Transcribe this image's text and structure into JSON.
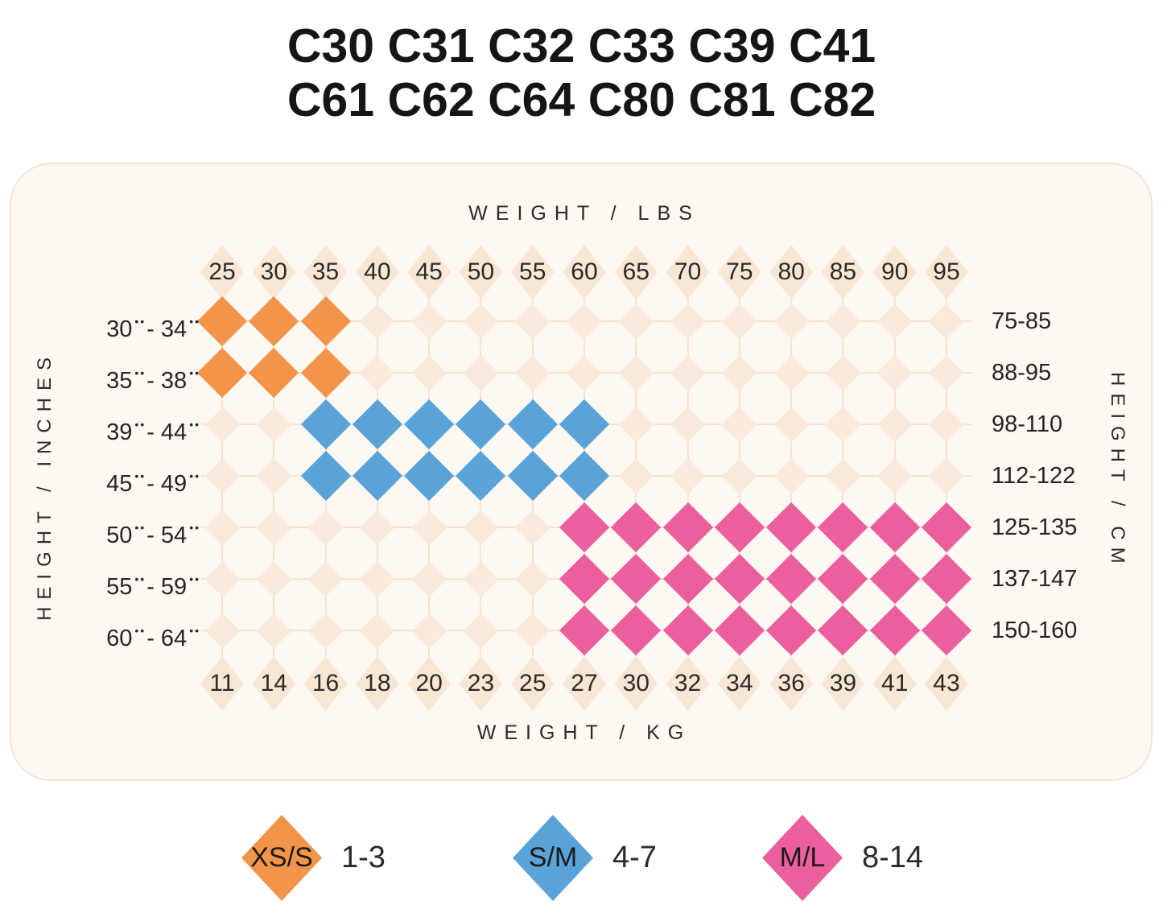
{
  "page_title": {
    "line1": "C30 C31 C32 C33 C39 C41",
    "line2": "C61 C62 C64 C80 C81 C82"
  },
  "chart_data": {
    "type": "heatmap",
    "title": "C30 C31 C32 C33 C39 C41 C61 C62 C64 C80 C81 C82 size chart",
    "axes": {
      "top": {
        "label": "WEIGHT / LBS",
        "ticks": [
          "25",
          "30",
          "35",
          "40",
          "45",
          "50",
          "55",
          "60",
          "65",
          "70",
          "75",
          "80",
          "85",
          "90",
          "95"
        ]
      },
      "bottom": {
        "label": "WEIGHT / KG",
        "ticks": [
          "11",
          "14",
          "16",
          "18",
          "20",
          "23",
          "25",
          "27",
          "30",
          "32",
          "34",
          "36",
          "39",
          "41",
          "43"
        ]
      },
      "left": {
        "label": "HEIGHT / INCHES",
        "unit_mark": "••",
        "separator": "- "
      },
      "right": {
        "label": "HEIGHT / CM"
      }
    },
    "rows": [
      {
        "inches": {
          "low": "30",
          "high": "34"
        },
        "cm": "75-85",
        "cells": [
          "XS/S",
          "XS/S",
          "XS/S",
          "",
          "",
          "",
          "",
          "",
          "",
          "",
          "",
          "",
          "",
          "",
          ""
        ]
      },
      {
        "inches": {
          "low": "35",
          "high": "38"
        },
        "cm": "88-95",
        "cells": [
          "XS/S",
          "XS/S",
          "XS/S",
          "",
          "",
          "",
          "",
          "",
          "",
          "",
          "",
          "",
          "",
          "",
          ""
        ]
      },
      {
        "inches": {
          "low": "39",
          "high": "44"
        },
        "cm": "98-110",
        "cells": [
          "",
          "",
          "S/M",
          "S/M",
          "S/M",
          "S/M",
          "S/M",
          "S/M",
          "",
          "",
          "",
          "",
          "",
          "",
          ""
        ]
      },
      {
        "inches": {
          "low": "45",
          "high": "49"
        },
        "cm": "112-122",
        "cells": [
          "",
          "",
          "S/M",
          "S/M",
          "S/M",
          "S/M",
          "S/M",
          "S/M",
          "",
          "",
          "",
          "",
          "",
          "",
          ""
        ]
      },
      {
        "inches": {
          "low": "50",
          "high": "54"
        },
        "cm": "125-135",
        "cells": [
          "",
          "",
          "",
          "",
          "",
          "",
          "",
          "M/L",
          "M/L",
          "M/L",
          "M/L",
          "M/L",
          "M/L",
          "M/L",
          "M/L"
        ]
      },
      {
        "inches": {
          "low": "55",
          "high": "59"
        },
        "cm": "137-147",
        "cells": [
          "",
          "",
          "",
          "",
          "",
          "",
          "",
          "M/L",
          "M/L",
          "M/L",
          "M/L",
          "M/L",
          "M/L",
          "M/L",
          "M/L"
        ]
      },
      {
        "inches": {
          "low": "60",
          "high": "64"
        },
        "cm": "150-160",
        "cells": [
          "",
          "",
          "",
          "",
          "",
          "",
          "",
          "M/L",
          "M/L",
          "M/L",
          "M/L",
          "M/L",
          "M/L",
          "M/L",
          "M/L"
        ]
      }
    ],
    "size_colors": {
      "XS/S": "#F2954A",
      "S/M": "#59A3D9",
      "M/L": "#EC5F9E"
    }
  },
  "legend": {
    "items": [
      {
        "size": "XS/S",
        "range": "1-3",
        "color": "#F2954A"
      },
      {
        "size": "S/M",
        "range": "4-7",
        "color": "#59A3D9"
      },
      {
        "size": "M/L",
        "range": "8-14",
        "color": "#EC5F9E"
      }
    ]
  },
  "colors": {
    "panel_bg": "#FDF8F2",
    "panel_border": "#F9E3D0",
    "grid_line": "#F8E3D1",
    "empty_cell": "#FAEADB",
    "tick_cell": "#F9E7D6",
    "text": "#2b2a28"
  }
}
